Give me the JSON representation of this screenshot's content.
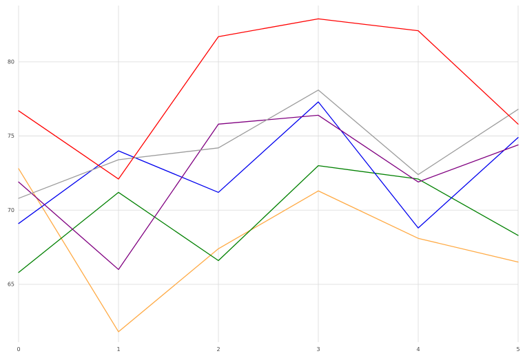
{
  "chart_data": {
    "type": "line",
    "title": "",
    "xlabel": "",
    "ylabel": "",
    "grid": true,
    "legend": false,
    "background": "#ffffff",
    "grid_color": "#d9d9d9",
    "tick_color": "#444444",
    "x": [
      0,
      1,
      2,
      3,
      4,
      5
    ],
    "xlim": [
      0,
      5
    ],
    "ylim": [
      61.1,
      83.8
    ],
    "xticks": [
      0,
      1,
      2,
      3,
      4,
      5
    ],
    "yticks": [
      65,
      70,
      75,
      80
    ],
    "series": [
      {
        "name": "orange-series",
        "color": "#ffaa44",
        "values": [
          72.8,
          61.8,
          67.4,
          71.3,
          68.1,
          66.5
        ]
      },
      {
        "name": "green-series",
        "color": "#008000",
        "values": [
          65.8,
          71.2,
          66.6,
          73.0,
          72.1,
          68.3
        ]
      },
      {
        "name": "blue-series",
        "color": "#0000ee",
        "values": [
          69.1,
          74.0,
          71.2,
          77.3,
          68.8,
          74.9
        ]
      },
      {
        "name": "purple-series",
        "color": "#800080",
        "values": [
          71.9,
          66.0,
          75.8,
          76.4,
          71.9,
          74.4
        ]
      },
      {
        "name": "gray-series",
        "color": "#9c9c9c",
        "values": [
          70.8,
          73.4,
          74.2,
          78.1,
          72.4,
          76.8
        ]
      },
      {
        "name": "red-series",
        "color": "#ff0000",
        "values": [
          76.7,
          72.1,
          81.7,
          82.9,
          82.1,
          75.8
        ]
      }
    ]
  }
}
